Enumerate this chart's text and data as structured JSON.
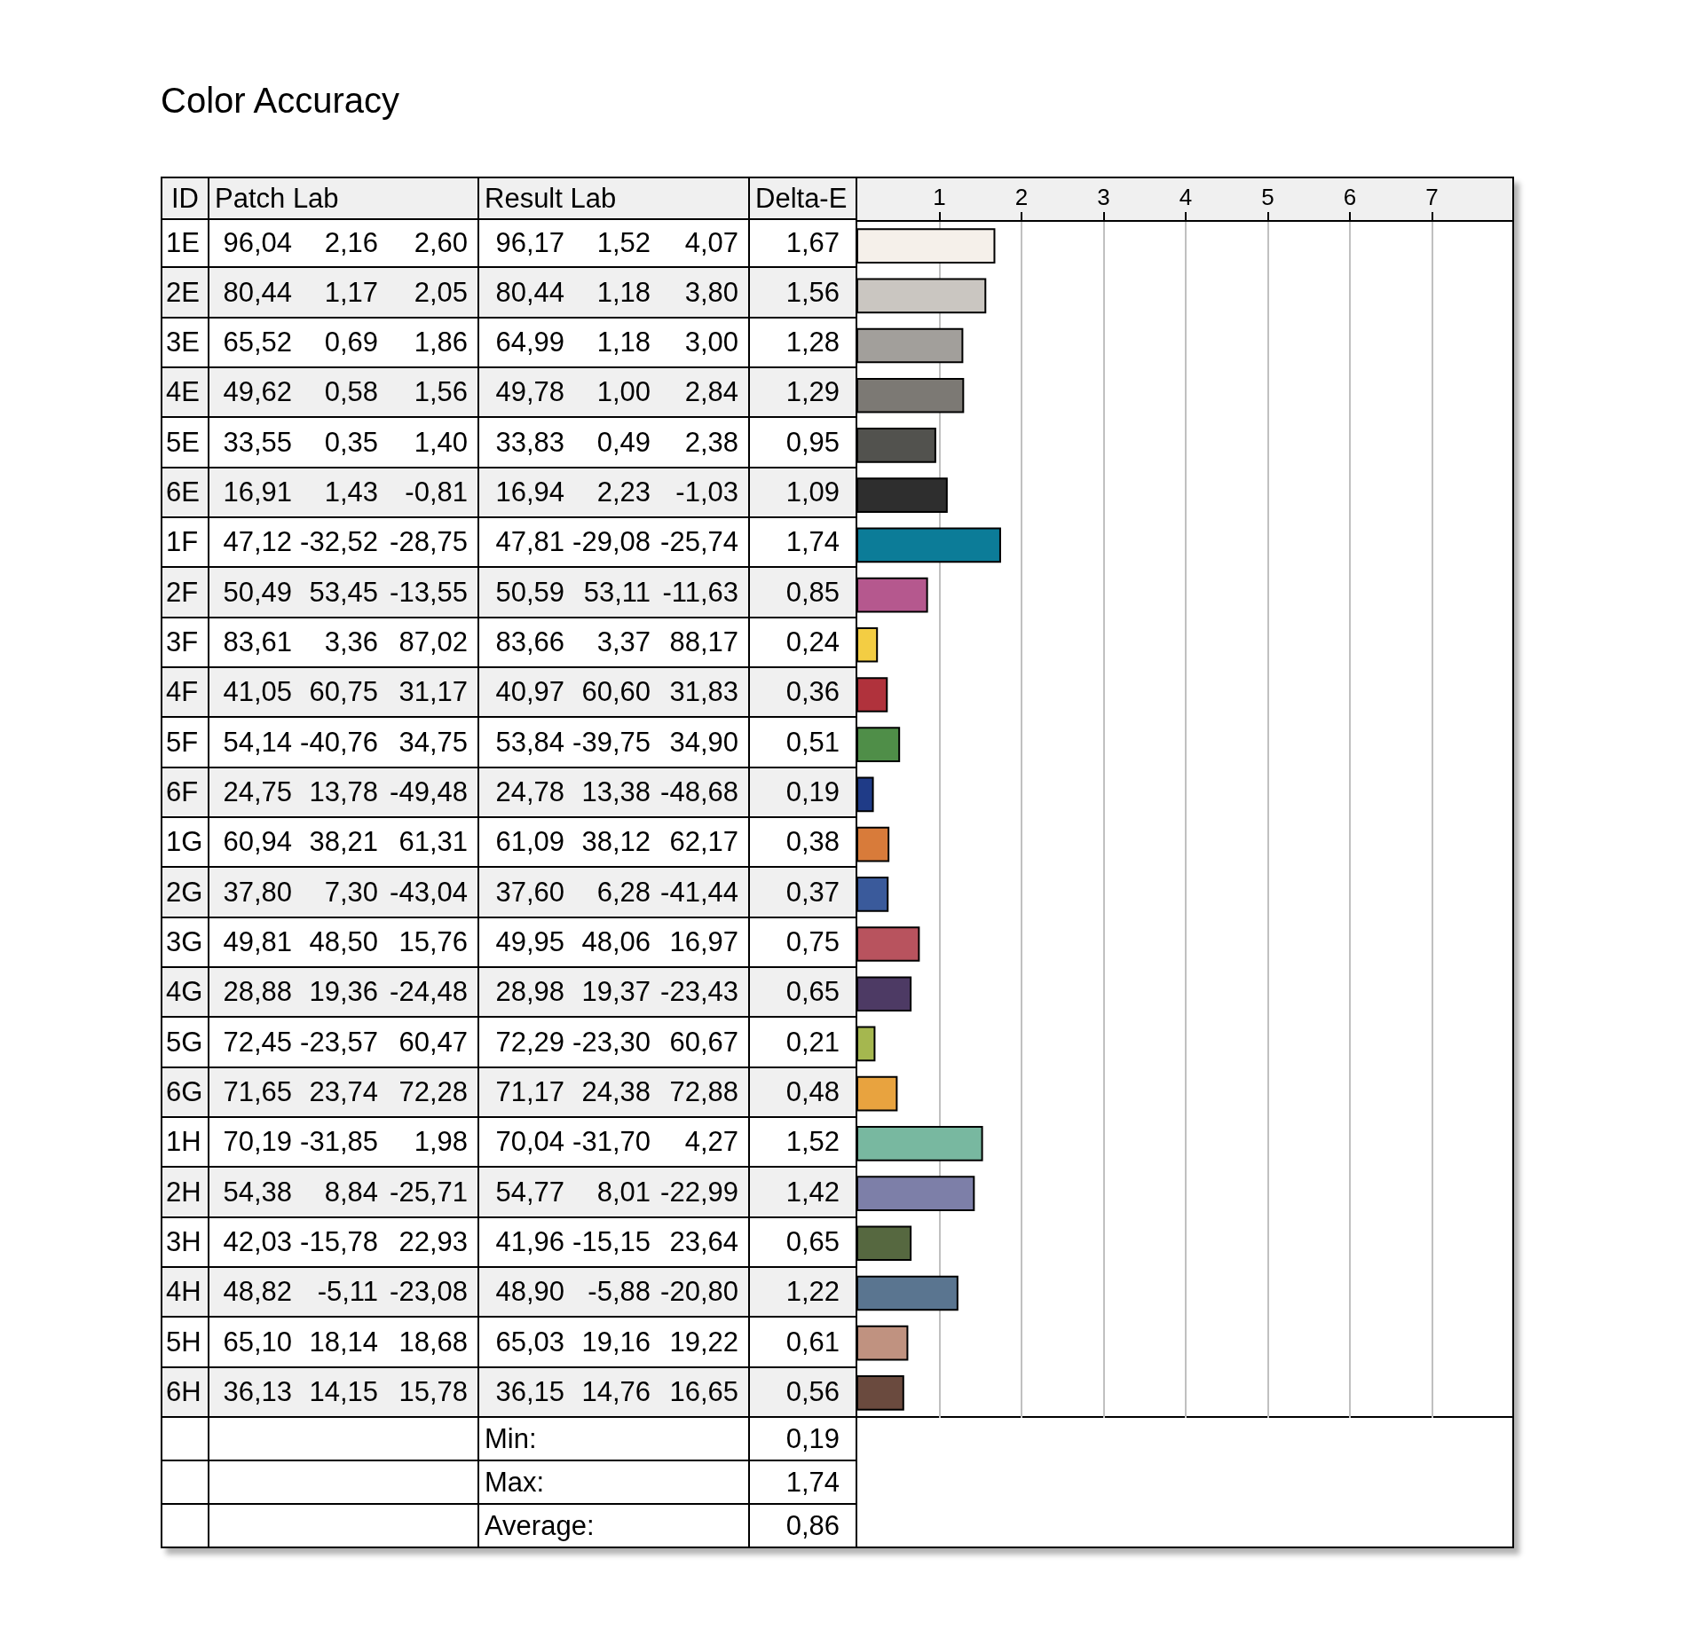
{
  "chart_data": {
    "type": "bar",
    "orientation": "horizontal",
    "title": "Color Accuracy",
    "categories": [
      "1E",
      "2E",
      "3E",
      "4E",
      "5E",
      "6E",
      "1F",
      "2F",
      "3F",
      "4F",
      "5F",
      "6F",
      "1G",
      "2G",
      "3G",
      "4G",
      "5G",
      "6G",
      "1H",
      "2H",
      "3H",
      "4H",
      "5H",
      "6H"
    ],
    "values": [
      1.67,
      1.56,
      1.28,
      1.29,
      0.95,
      1.09,
      1.74,
      0.85,
      0.24,
      0.36,
      0.51,
      0.19,
      0.38,
      0.37,
      0.75,
      0.65,
      0.21,
      0.48,
      1.52,
      1.42,
      0.65,
      1.22,
      0.61,
      0.56
    ],
    "colors": [
      "#f5f0ea",
      "#cac6c1",
      "#a29f9b",
      "#7c7974",
      "#52524e",
      "#2e2e2e",
      "#0c7c98",
      "#b5588e",
      "#f3cd43",
      "#b0323c",
      "#4f8e48",
      "#1f3b87",
      "#d87b3a",
      "#3a5a9b",
      "#b8535e",
      "#4d3a64",
      "#a5b74f",
      "#e8a33f",
      "#78b8a0",
      "#7d7fa8",
      "#566840",
      "#5a7590",
      "#c09280",
      "#6a4a3e"
    ],
    "value_labels": [
      "1,67",
      "1,56",
      "1,28",
      "1,29",
      "0,95",
      "1,09",
      "1,74",
      "0,85",
      "0,24",
      "0,36",
      "0,51",
      "0,19",
      "0,38",
      "0,37",
      "0,75",
      "0,65",
      "0,21",
      "0,48",
      "1,52",
      "1,42",
      "0,65",
      "1,22",
      "0,61",
      "0,56"
    ],
    "x2lim": [
      0,
      8
    ],
    "x2ticks": [
      1,
      2,
      3,
      4,
      5,
      6,
      7
    ],
    "grid": "x",
    "annotations": [
      "ID",
      "Patch Lab",
      "Result Lab",
      "Delta-E",
      "96,04",
      "2,16",
      "2,60",
      "96,17",
      "1,52",
      "4,07",
      "80,44",
      "1,17",
      "2,05",
      "80,44",
      "1,18",
      "3,80",
      "65,52",
      "0,69",
      "1,86",
      "64,99",
      "1,18",
      "3,00",
      "49,62",
      "0,58",
      "1,56",
      "49,78",
      "1,00",
      "2,84",
      "33,55",
      "0,35",
      "1,40",
      "33,83",
      "0,49",
      "2,38",
      "16,91",
      "1,43",
      "-0,81",
      "16,94",
      "2,23",
      "-1,03",
      "47,12",
      "-32,52",
      "-28,75",
      "47,81",
      "-29,08",
      "-25,74",
      "50,49",
      "53,45",
      "-13,55",
      "50,59",
      "53,11",
      "-11,63",
      "83,61",
      "3,36",
      "87,02",
      "83,66",
      "3,37",
      "88,17",
      "41,05",
      "60,75",
      "31,17",
      "40,97",
      "60,60",
      "31,83",
      "54,14",
      "-40,76",
      "34,75",
      "53,84",
      "-39,75",
      "34,90",
      "24,75",
      "13,78",
      "-49,48",
      "24,78",
      "13,38",
      "-48,68",
      "60,94",
      "38,21",
      "61,31",
      "61,09",
      "38,12",
      "62,17",
      "37,80",
      "7,30",
      "-43,04",
      "37,60",
      "6,28",
      "-41,44",
      "49,81",
      "48,50",
      "15,76",
      "49,95",
      "48,06",
      "16,97",
      "28,88",
      "19,36",
      "-24,48",
      "28,98",
      "19,37",
      "-23,43",
      "72,45",
      "-23,57",
      "60,47",
      "72,29",
      "-23,30",
      "60,67",
      "71,65",
      "23,74",
      "72,28",
      "71,17",
      "24,38",
      "72,88",
      "70,19",
      "-31,85",
      "1,98",
      "70,04",
      "-31,70",
      "4,27",
      "54,38",
      "8,84",
      "-25,71",
      "54,77",
      "8,01",
      "-22,99",
      "42,03",
      "-15,78",
      "22,93",
      "41,96",
      "-15,15",
      "23,64",
      "48,82",
      "-5,11",
      "-23,08",
      "48,90",
      "-5,88",
      "-20,80",
      "65,10",
      "18,14",
      "18,68",
      "65,03",
      "19,16",
      "19,22",
      "36,13",
      "14,15",
      "15,78",
      "36,15",
      "14,76",
      "16,65",
      "Min:",
      "0,19",
      "Max:",
      "1,74",
      "Average:",
      "0,86"
    ]
  }
}
